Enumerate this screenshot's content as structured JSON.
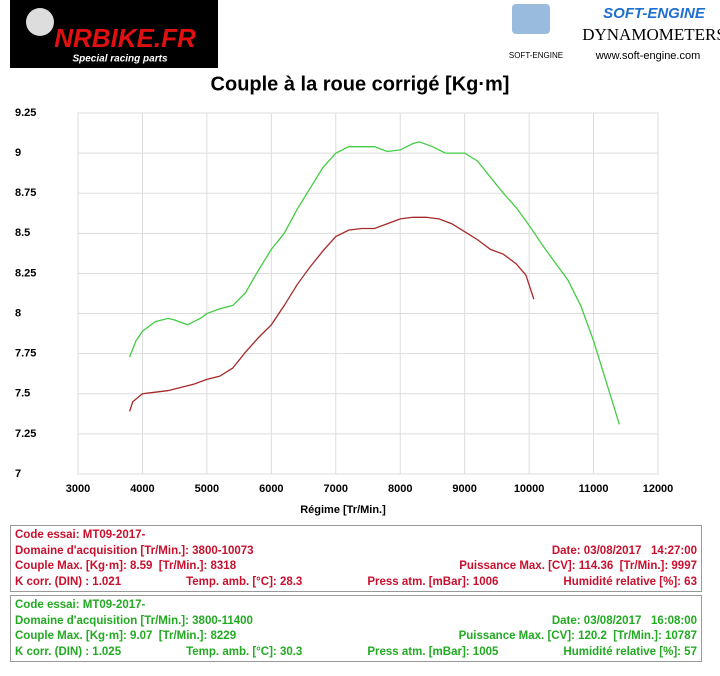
{
  "header": {
    "brand": "NRBIKE.FR",
    "tagline": "Special racing parts",
    "vendor": "SOFT-ENGINE",
    "vendor_small": "SOFT-ENGINE",
    "product": "DYNAMOMETERS",
    "url": "www.soft-engine.com"
  },
  "chart_data": {
    "type": "line",
    "title": "Couple à la roue corrigé [Kg·m]",
    "x_label": "Régime [Tr/Min.]",
    "xlim": [
      3000,
      12000
    ],
    "xticks": [
      3000,
      4000,
      5000,
      6000,
      7000,
      8000,
      9000,
      10000,
      11000,
      12000
    ],
    "ylim": [
      7,
      9.25
    ],
    "yticks": [
      9.25,
      9,
      8.75,
      8.5,
      8.25,
      8,
      7.75,
      7.5,
      7.25,
      7
    ],
    "grid": true,
    "series": [
      {
        "color": "#a52a2a",
        "x": [
          3800,
          3850,
          4000,
          4200,
          4400,
          4600,
          4800,
          5000,
          5200,
          5400,
          5600,
          5800,
          6000,
          6200,
          6400,
          6600,
          6800,
          7000,
          7200,
          7400,
          7600,
          7800,
          8000,
          8200,
          8400,
          8600,
          8800,
          9000,
          9200,
          9400,
          9600,
          9800,
          9950,
          10073
        ],
        "values": [
          7.39,
          7.45,
          7.5,
          7.51,
          7.52,
          7.54,
          7.56,
          7.59,
          7.61,
          7.66,
          7.76,
          7.85,
          7.93,
          8.05,
          8.18,
          8.29,
          8.39,
          8.48,
          8.52,
          8.53,
          8.53,
          8.56,
          8.59,
          8.6,
          8.6,
          8.59,
          8.56,
          8.51,
          8.46,
          8.4,
          8.37,
          8.31,
          8.24,
          8.09
        ]
      },
      {
        "color": "#44cc44",
        "x": [
          3800,
          3900,
          4000,
          4200,
          4400,
          4500,
          4700,
          4900,
          5000,
          5200,
          5400,
          5600,
          5800,
          6000,
          6200,
          6400,
          6600,
          6800,
          7000,
          7200,
          7400,
          7600,
          7800,
          8000,
          8200,
          8300,
          8500,
          8700,
          9000,
          9200,
          9400,
          9600,
          9800,
          10000,
          10200,
          10400,
          10600,
          10800,
          11000,
          11200,
          11400
        ],
        "values": [
          7.73,
          7.83,
          7.89,
          7.95,
          7.97,
          7.96,
          7.93,
          7.97,
          8.0,
          8.03,
          8.05,
          8.13,
          8.27,
          8.4,
          8.5,
          8.65,
          8.78,
          8.91,
          9.0,
          9.04,
          9.04,
          9.04,
          9.01,
          9.02,
          9.06,
          9.07,
          9.04,
          9.0,
          9.0,
          8.95,
          8.85,
          8.75,
          8.66,
          8.55,
          8.43,
          8.32,
          8.21,
          8.05,
          7.83,
          7.57,
          7.31
        ]
      }
    ]
  },
  "runs": [
    {
      "lines": [
        [
          "Code essai: MT09-2017-"
        ],
        [
          "Domaine d'acquisition [Tr/Min.]: 3800-10073",
          "Date: 03/08/2017   14:27:00"
        ],
        [
          "Couple Max. [Kg·m]: 8.59  [Tr/Min.]: 8318",
          "Puissance Max. [CV]: 114.36  [Tr/Min.]: 9997"
        ],
        [
          "K corr. (DIN) : 1.021",
          "Temp. amb. [°C]: 28.3",
          "Press atm. [mBar]: 1006",
          "Humidité relative [%]: 63"
        ]
      ]
    },
    {
      "lines": [
        [
          "Code essai: MT09-2017-"
        ],
        [
          "Domaine d'acquisition [Tr/Min.]: 3800-11400",
          "Date: 03/08/2017   16:08:00"
        ],
        [
          "Couple Max. [Kg·m]: 9.07  [Tr/Min.]: 8229",
          "Puissance Max. [CV]: 120.2  [Tr/Min.]: 10787"
        ],
        [
          "K corr. (DIN) : 1.025",
          "Temp. amb. [°C]: 30.3",
          "Press atm. [mBar]: 1005",
          "Humidité relative [%]: 57"
        ]
      ]
    }
  ]
}
